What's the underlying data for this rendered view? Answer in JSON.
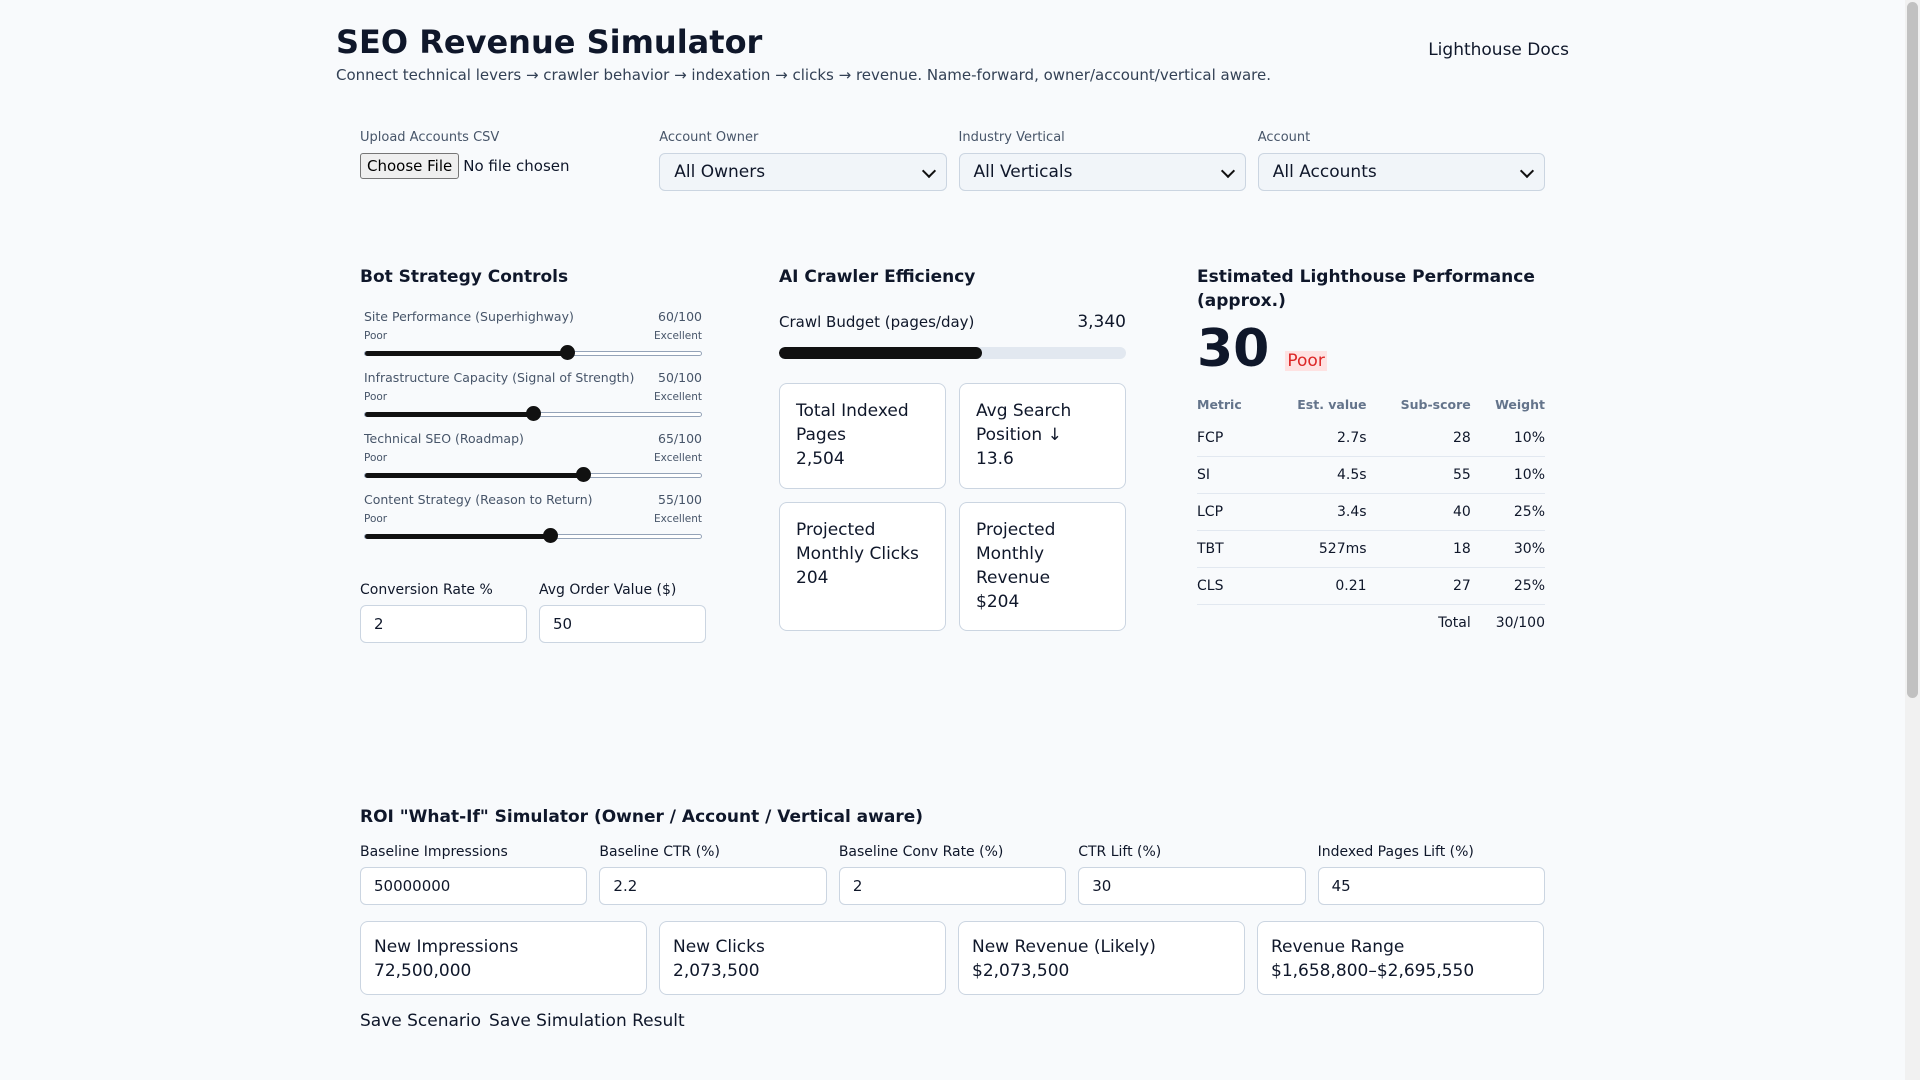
{
  "header": {
    "title": "SEO Revenue Simulator",
    "subtitle": "Connect technical levers → crawler behavior → indexation → clicks → revenue. Name-forward, owner/account/vertical aware.",
    "docs_link": "Lighthouse Docs"
  },
  "filters": {
    "upload_label": "Upload Accounts CSV",
    "upload_button": "Choose File",
    "upload_status": "No file chosen",
    "owner_label": "Account Owner",
    "owner_value": "All Owners",
    "vertical_label": "Industry Vertical",
    "vertical_value": "All Verticals",
    "account_label": "Account",
    "account_value": "All Accounts"
  },
  "bot_controls": {
    "title": "Bot Strategy Controls",
    "sliders": [
      {
        "label": "Site Performance (Superhighway)",
        "value_text": "60/100",
        "value": 60,
        "min_label": "Poor",
        "max_label": "Excellent"
      },
      {
        "label": "Infrastructure Capacity (Signal of Strength)",
        "value_text": "50/100",
        "value": 50,
        "min_label": "Poor",
        "max_label": "Excellent"
      },
      {
        "label": "Technical SEO (Roadmap)",
        "value_text": "65/100",
        "value": 65,
        "min_label": "Poor",
        "max_label": "Excellent"
      },
      {
        "label": "Content Strategy (Reason to Return)",
        "value_text": "55/100",
        "value": 55,
        "min_label": "Poor",
        "max_label": "Excellent"
      }
    ],
    "conversion_label": "Conversion Rate %",
    "conversion_value": "2",
    "aov_label": "Avg Order Value ($)",
    "aov_value": "50"
  },
  "crawler": {
    "title": "AI Crawler Efficiency",
    "crawl_label": "Crawl Budget (pages/day)",
    "crawl_value": "3,340",
    "crawl_fill_percent": 58.5,
    "cards": [
      {
        "label": "Total Indexed Pages",
        "value": "2,504"
      },
      {
        "label": "Avg Search Position ↓",
        "value": "13.6"
      },
      {
        "label": "Projected Monthly Clicks",
        "value": "204"
      },
      {
        "label": "Projected Monthly Revenue",
        "value": "$204"
      }
    ]
  },
  "lighthouse": {
    "title": "Estimated Lighthouse Performance (approx.)",
    "score": "30",
    "rating": "Poor",
    "headers": [
      "Metric",
      "Est. value",
      "Sub-score",
      "Weight"
    ],
    "rows": [
      {
        "metric": "FCP",
        "value": "2.7s",
        "sub": "28",
        "weight": "10%"
      },
      {
        "metric": "SI",
        "value": "4.5s",
        "sub": "55",
        "weight": "10%"
      },
      {
        "metric": "LCP",
        "value": "3.4s",
        "sub": "40",
        "weight": "25%"
      },
      {
        "metric": "TBT",
        "value": "527ms",
        "sub": "18",
        "weight": "30%"
      },
      {
        "metric": "CLS",
        "value": "0.21",
        "sub": "27",
        "weight": "25%"
      }
    ],
    "total_label": "Total",
    "total_value": "30/100"
  },
  "roi": {
    "title": "ROI \"What-If\" Simulator (Owner / Account / Vertical aware)",
    "inputs": [
      {
        "label": "Baseline Impressions",
        "value": "50000000"
      },
      {
        "label": "Baseline CTR (%)",
        "value": "2.2"
      },
      {
        "label": "Baseline Conv Rate (%)",
        "value": "2"
      },
      {
        "label": "CTR Lift (%)",
        "value": "30"
      },
      {
        "label": "Indexed Pages Lift (%)",
        "value": "45"
      }
    ],
    "results": [
      {
        "label": "New Impressions",
        "value": "72,500,000"
      },
      {
        "label": "New Clicks",
        "value": "2,073,500"
      },
      {
        "label": "New Revenue (Likely)",
        "value": "$2,073,500"
      },
      {
        "label": "Revenue Range",
        "value": "$1,658,800–$2,695,550"
      }
    ],
    "save_scenario": "Save Scenario",
    "save_result": "Save Simulation Result"
  }
}
